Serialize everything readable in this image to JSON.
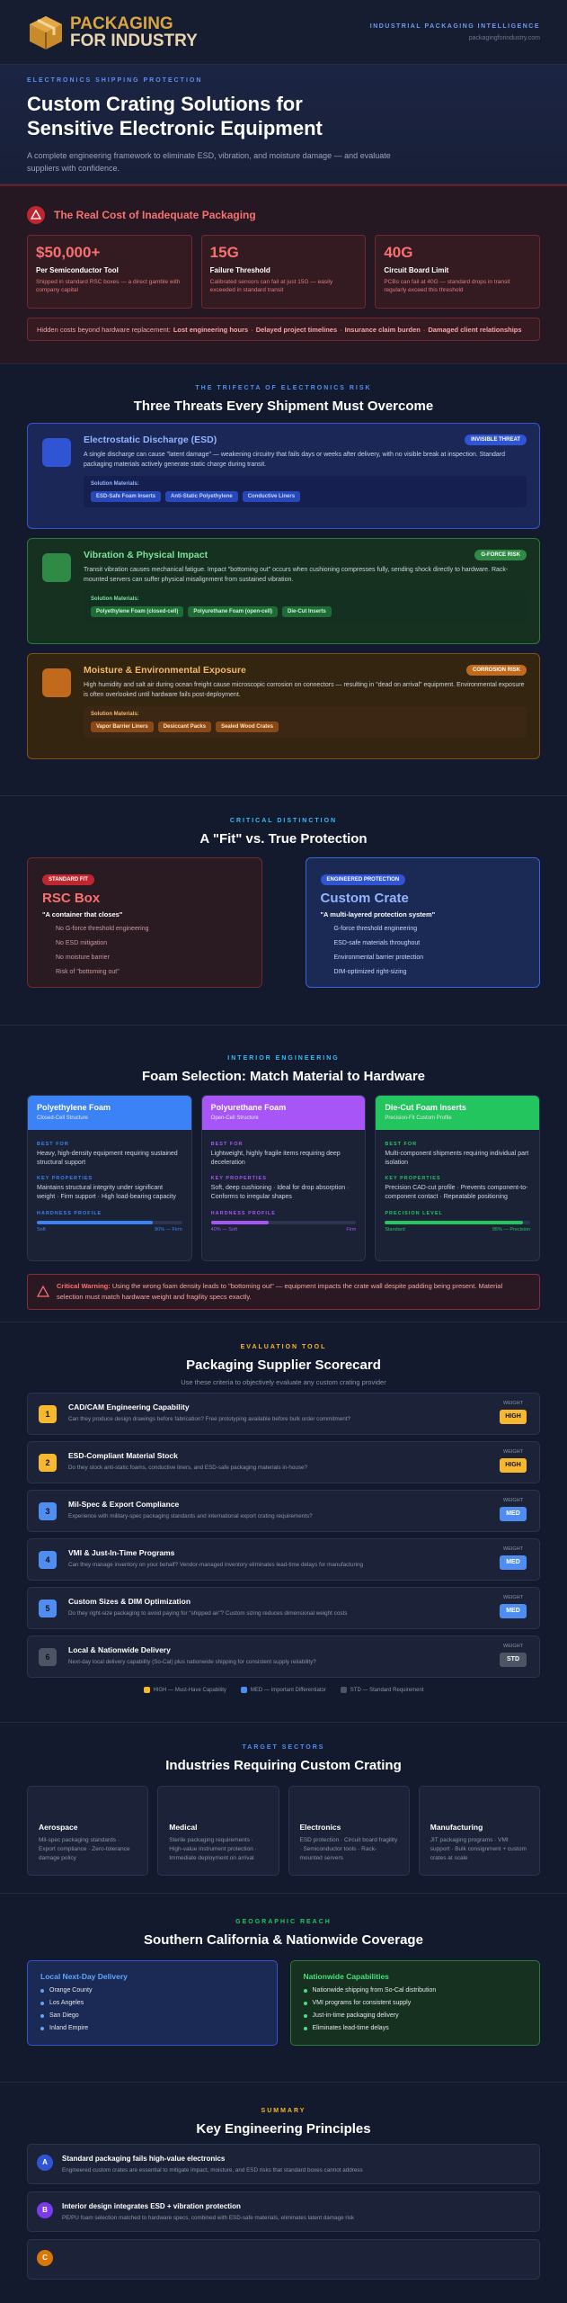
{
  "header": {
    "logo_line1": "PACKAGING",
    "logo_line2": "FOR INDUSTRY",
    "tagline": "INDUSTRIAL PACKAGING INTELLIGENCE",
    "website": "packagingforindustry.com"
  },
  "hero": {
    "eyebrow": "ELECTRONICS SHIPPING PROTECTION",
    "title": "Custom Crating Solutions for Sensitive Electronic Equipment",
    "subtitle": "A complete engineering framework to eliminate ESD, vibration, and moisture damage — and evaluate suppliers with confidence."
  },
  "cost": {
    "title": "The Real Cost of Inadequate Packaging",
    "cards": [
      {
        "value": "$50,000+",
        "label": "Per Semiconductor Tool",
        "text": "Shipped in standard RSC boxes — a direct gamble with company capital"
      },
      {
        "value": "15G",
        "label": "Failure Threshold",
        "text": "Calibrated sensors can fail at just 15G — easily exceeded in standard transit"
      },
      {
        "value": "40G",
        "label": "Circuit Board Limit",
        "text": "PCBs can fail at 40G — standard drops in transit regularly exceed this threshold"
      }
    ],
    "hidden_costs": {
      "lead": "Hidden costs beyond hardware replacement:",
      "items": [
        "Lost engineering hours",
        "Delayed project timelines",
        "Insurance claim burden",
        "Damaged client relationships"
      ]
    }
  },
  "threats": {
    "eyebrow": "THE TRIFECTA OF ELECTRONICS RISK",
    "title": "Three Threats Every Shipment Must Overcome",
    "materials_label": "Solution Materials:",
    "cards": [
      {
        "title": "Electrostatic Discharge (ESD)",
        "badge": "INVISIBLE THREAT",
        "text": "A single discharge can cause \"latent damage\" — weakening circuitry that fails days or weeks after delivery, with no visible break at inspection. Standard packaging materials actively generate static charge during transit.",
        "materials": [
          "ESD-Safe Foam Inserts",
          "Anti-Static Polyethylene",
          "Conductive Liners"
        ]
      },
      {
        "title": "Vibration & Physical Impact",
        "badge": "G-FORCE RISK",
        "text": "Transit vibration causes mechanical fatigue. Impact \"bottoming out\" occurs when cushioning compresses fully, sending shock directly to hardware. Rack-mounted servers can suffer physical misalignment from sustained vibration.",
        "materials": [
          "Polyethylene Foam (closed-cell)",
          "Polyurethane Foam (open-cell)",
          "Die-Cut Inserts"
        ]
      },
      {
        "title": "Moisture & Environmental Exposure",
        "badge": "CORROSION RISK",
        "text": "High humidity and salt air during ocean freight cause microscopic corrosion on connectors — resulting in \"dead on arrival\" equipment. Environmental exposure is often overlooked until hardware fails post-deployment.",
        "materials": [
          "Vapor Barrier Liners",
          "Desiccant Packs",
          "Sealed Wood Crates"
        ]
      }
    ]
  },
  "fit": {
    "eyebrow": "CRITICAL DISTINCTION",
    "title": "A \"Fit\" vs. True Protection",
    "standard": {
      "badge": "STANDARD FIT",
      "title": "RSC Box",
      "quote": "\"A container that closes\"",
      "items": [
        "No G-force threshold engineering",
        "No ESD mitigation",
        "No moisture barrier",
        "Risk of \"bottoming out\""
      ]
    },
    "engineered": {
      "badge": "ENGINEERED PROTECTION",
      "title": "Custom Crate",
      "quote": "\"A multi-layered protection system\"",
      "items": [
        "G-force threshold engineering",
        "ESD-safe materials throughout",
        "Environmental barrier protection",
        "DIM-optimized right-sizing"
      ]
    }
  },
  "foam": {
    "eyebrow": "INTERIOR ENGINEERING",
    "title": "Foam Selection: Match Material to Hardware",
    "best_for_label": "BEST FOR",
    "properties_label": "KEY PROPERTIES",
    "cards": [
      {
        "title": "Polyethylene Foam",
        "subtitle": "Closed-Cell Structure",
        "best_for": "Heavy, high-density equipment requiring sustained structural support",
        "properties": "Maintains structural integrity under significant weight · Firm support · High load-bearing capacity",
        "profile_label": "HARDNESS PROFILE",
        "level": 80,
        "low_label": "Soft",
        "high_label": "80% — Firm",
        "color": "#3b82f6"
      },
      {
        "title": "Polyurethane Foam",
        "subtitle": "Open-Cell Structure",
        "best_for": "Lightweight, highly fragile items requiring deep deceleration",
        "properties": "Soft, deep cushioning · Ideal for drop absorption · Conforms to irregular shapes",
        "profile_label": "HARDNESS PROFILE",
        "level": 40,
        "low_label": "40% — Soft",
        "high_label": "Firm",
        "color": "#a855f7"
      },
      {
        "title": "Die-Cut Foam Inserts",
        "subtitle": "Precision-Fit Custom Profile",
        "best_for": "Multi-component shipments requiring individual part isolation",
        "properties": "Precision CAD-cut profile · Prevents component-to-component contact · Repeatable positioning",
        "profile_label": "PRECISION LEVEL",
        "level": 95,
        "low_label": "Standard",
        "high_label": "95% — Precision",
        "color": "#22c55e"
      }
    ],
    "warning": {
      "lead": "Critical Warning:",
      "text": "Using the wrong foam density leads to \"bottoming out\" — equipment impacts the crate wall despite padding being present. Material selection must match hardware weight and fragility specs exactly."
    }
  },
  "scorecard": {
    "eyebrow": "EVALUATION TOOL",
    "title": "Packaging Supplier Scorecard",
    "subtitle": "Use these criteria to objectively evaluate any custom crating provider",
    "weight_label": "WEIGHT",
    "items": [
      {
        "number": 1,
        "title": "CAD/CAM Engineering Capability",
        "text": "Can they produce design drawings before fabrication? Free prototyping available before bulk order commitment?",
        "weight": "HIGH",
        "color": "#f5b82e"
      },
      {
        "number": 2,
        "title": "ESD-Compliant Material Stock",
        "text": "Do they stock anti-static foams, conductive liners, and ESD-safe packaging materials in-house?",
        "weight": "HIGH",
        "color": "#f5b82e"
      },
      {
        "number": 3,
        "title": "Mil-Spec & Export Compliance",
        "text": "Experience with military-spec packaging standards and international export crating requirements?",
        "weight": "MED",
        "color": "#4f8ef0"
      },
      {
        "number": 4,
        "title": "VMI & Just-In-Time Programs",
        "text": "Can they manage inventory on your behalf? Vendor-managed inventory eliminates lead-time delays for manufacturing",
        "weight": "MED",
        "color": "#4f8ef0"
      },
      {
        "number": 5,
        "title": "Custom Sizes & DIM Optimization",
        "text": "Do they right-size packaging to avoid paying for \"shipped air\"? Custom sizing reduces dimensional weight costs",
        "weight": "MED",
        "color": "#4f8ef0"
      },
      {
        "number": 6,
        "title": "Local & Nationwide Delivery",
        "text": "Next-day local delivery capability (So-Cal) plus nationwide shipping for consistent supply reliability?",
        "weight": "STD",
        "color": "#4b5563"
      }
    ],
    "legend": [
      {
        "label": "HIGH — Must-Have Capability",
        "color": "#f5b82e"
      },
      {
        "label": "MED — Important Differentiator",
        "color": "#4f8ef0"
      },
      {
        "label": "STD — Standard Requirement",
        "color": "#4b5563"
      }
    ]
  },
  "industries": {
    "eyebrow": "TARGET SECTORS",
    "title": "Industries Requiring Custom Crating",
    "cards": [
      {
        "title": "Aerospace",
        "text": "Mil-spec packaging standards · Export compliance · Zero-tolerance damage policy"
      },
      {
        "title": "Medical",
        "text": "Sterile packaging requirements · High-value instrument protection · Immediate deployment on arrival"
      },
      {
        "title": "Electronics",
        "text": "ESD protection · Circuit board fragility · Semiconductor tools · Rack-mounted servers"
      },
      {
        "title": "Manufacturing",
        "text": "JIT packaging programs · VMI support · Bulk consignment + custom crates at scale"
      }
    ]
  },
  "coverage": {
    "eyebrow": "GEOGRAPHIC REACH",
    "title": "Southern California & Nationwide Coverage",
    "local": {
      "title": "Local Next-Day Delivery",
      "items": [
        "Orange County",
        "Los Angeles",
        "San Diego",
        "Inland Empire"
      ]
    },
    "nationwide": {
      "title": "Nationwide Capabilities",
      "items": [
        "Nationwide shipping from So-Cal distribution",
        "VMI programs for consistent supply",
        "Just-in-time packaging delivery",
        "Eliminates lead-time delays"
      ]
    }
  },
  "summary": {
    "eyebrow": "SUMMARY",
    "title": "Key Engineering Principles",
    "items": [
      {
        "letter": "A",
        "title": "Standard packaging fails high-value electronics",
        "text": "Engineered custom crates are essential to mitigate impact, moisture, and ESD risks that standard boxes cannot address"
      },
      {
        "letter": "B",
        "title": "Interior design integrates ESD + vibration protection",
        "text": "PE/PU foam selection matched to hardware specs, combined with ESD-safe materials, eliminates latent damage risk"
      },
      {
        "letter": "C"
      }
    ]
  }
}
